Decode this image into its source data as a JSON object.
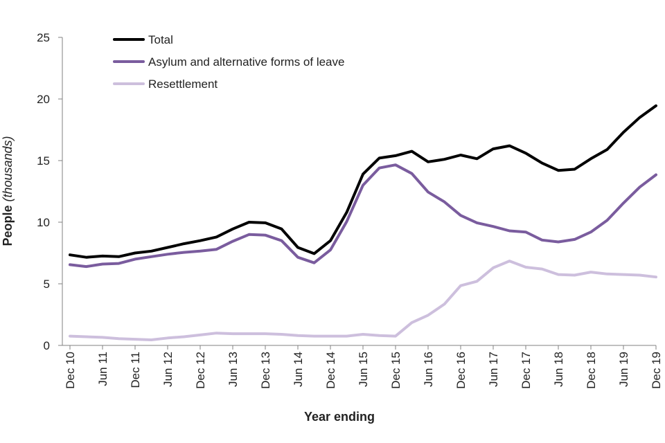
{
  "chart_data": {
    "type": "line",
    "title": "",
    "xlabel": "Year ending",
    "ylabel_main": "People ",
    "ylabel_unit": "(thousands)",
    "ylim": [
      0,
      25
    ],
    "yticks": [
      0,
      5,
      10,
      15,
      20,
      25
    ],
    "grid": false,
    "legend_position": "top-left",
    "x": [
      "Dec 10",
      "Mar 11",
      "Jun 11",
      "Sep 11",
      "Dec 11",
      "Mar 12",
      "Jun 12",
      "Sep 12",
      "Dec 12",
      "Mar 13",
      "Jun 13",
      "Sep 13",
      "Dec 13",
      "Mar 14",
      "Jun 14",
      "Sep 14",
      "Dec 14",
      "Mar 15",
      "Jun 15",
      "Sep 15",
      "Dec 15",
      "Mar 16",
      "Jun 16",
      "Sep 16",
      "Dec 16",
      "Mar 17",
      "Jun 17",
      "Sep 17",
      "Dec 17",
      "Mar 18",
      "Jun 18",
      "Sep 18",
      "Dec 18",
      "Mar 19",
      "Jun 19",
      "Sep 19",
      "Dec 19"
    ],
    "xtick_labels": [
      "Dec 10",
      "Jun 11",
      "Dec 11",
      "Jun 12",
      "Dec 12",
      "Jun 13",
      "Dec 13",
      "Jun 14",
      "Dec 14",
      "Jun 15",
      "Dec 15",
      "Jun 16",
      "Dec 16",
      "Jun 17",
      "Dec 17",
      "Jun 18",
      "Dec 18",
      "Jun 19",
      "Dec 19"
    ],
    "series": [
      {
        "name": "Total",
        "color": "#000000",
        "values": [
          7.35,
          7.15,
          7.25,
          7.2,
          7.5,
          7.65,
          7.95,
          8.25,
          8.5,
          8.8,
          9.45,
          10.0,
          9.95,
          9.45,
          7.95,
          7.45,
          8.5,
          10.8,
          13.9,
          15.2,
          15.4,
          15.75,
          14.9,
          15.1,
          15.45,
          15.15,
          15.95,
          16.2,
          15.6,
          14.8,
          14.2,
          14.3,
          15.15,
          15.9,
          17.3,
          18.5,
          19.45
        ]
      },
      {
        "name": "Asylum and alternative forms of leave",
        "color": "#7A5C9E",
        "values": [
          6.55,
          6.4,
          6.6,
          6.65,
          7.0,
          7.2,
          7.4,
          7.55,
          7.65,
          7.8,
          8.45,
          9.0,
          8.95,
          8.5,
          7.15,
          6.7,
          7.75,
          10.05,
          13.0,
          14.4,
          14.65,
          13.95,
          12.45,
          11.65,
          10.55,
          9.95,
          9.65,
          9.3,
          9.2,
          8.55,
          8.4,
          8.6,
          9.2,
          10.15,
          11.55,
          12.85,
          13.85
        ]
      },
      {
        "name": "Resettlement",
        "color": "#CDBFDD",
        "values": [
          0.75,
          0.7,
          0.65,
          0.55,
          0.5,
          0.45,
          0.6,
          0.7,
          0.85,
          1.0,
          0.95,
          0.95,
          0.95,
          0.9,
          0.8,
          0.75,
          0.75,
          0.75,
          0.9,
          0.8,
          0.75,
          1.85,
          2.45,
          3.35,
          4.85,
          5.2,
          6.3,
          6.85,
          6.35,
          6.2,
          5.75,
          5.7,
          5.95,
          5.8,
          5.75,
          5.7,
          5.55
        ]
      }
    ]
  }
}
